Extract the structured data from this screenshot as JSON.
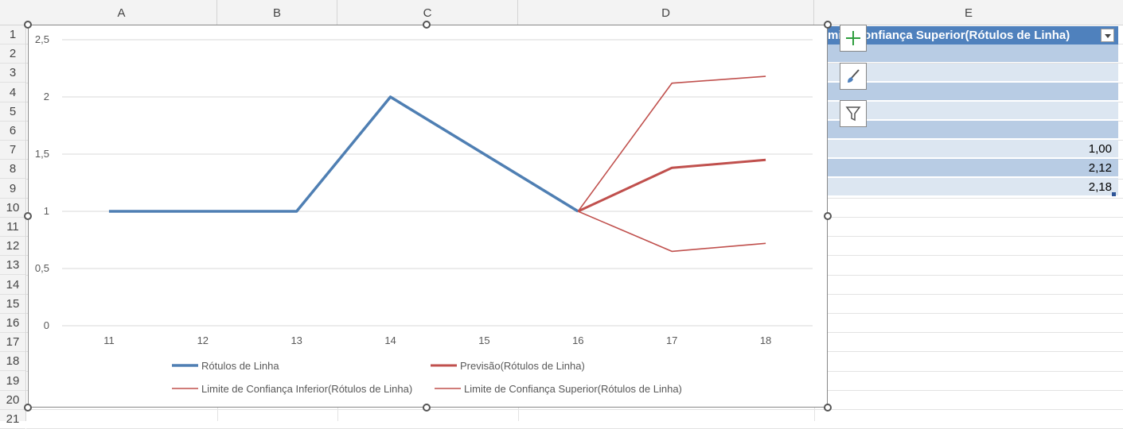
{
  "columns": [
    {
      "label": "A"
    },
    {
      "label": "B"
    },
    {
      "label": "C"
    },
    {
      "label": "D"
    },
    {
      "label": "E"
    }
  ],
  "rows": [
    "1",
    "2",
    "3",
    "4",
    "5",
    "6",
    "7",
    "8",
    "9",
    "10",
    "11",
    "12",
    "13",
    "14",
    "15",
    "16",
    "17",
    "18",
    "19",
    "20",
    "21"
  ],
  "table": {
    "header": "mi e Confiança Superior(Rótulos de Linha)",
    "values": [
      "",
      "",
      "",
      "",
      "",
      "1,00",
      "2,12",
      "2,18"
    ]
  },
  "chart_toolbar": [
    {
      "name": "chart-elements-button",
      "icon": "plus-icon"
    },
    {
      "name": "chart-styles-button",
      "icon": "brush-icon"
    },
    {
      "name": "chart-filters-button",
      "icon": "funnel-icon"
    }
  ],
  "colors": {
    "series_actual": "#4f7fb3",
    "series_forecast": "#c0504d",
    "table_header": "#4f81bd",
    "table_dark": "#b8cce4",
    "table_light": "#dce6f1"
  },
  "chart_data": {
    "type": "line",
    "x": [
      11,
      12,
      13,
      14,
      15,
      16,
      17,
      18
    ],
    "ylim": [
      0,
      2.5
    ],
    "yticks": [
      "0",
      "0,5",
      "1",
      "1,5",
      "2",
      "2,5"
    ],
    "xticks": [
      "11",
      "12",
      "13",
      "14",
      "15",
      "16",
      "17",
      "18"
    ],
    "grid": true,
    "legend_position": "bottom",
    "series": [
      {
        "name": "Rótulos de Linha",
        "values": [
          1,
          1,
          1,
          2,
          1.5,
          1,
          null,
          null
        ],
        "color": "#4f7fb3"
      },
      {
        "name": "Previsão(Rótulos de Linha)",
        "values": [
          null,
          null,
          null,
          null,
          null,
          1,
          1.38,
          1.45
        ],
        "color": "#c0504d"
      },
      {
        "name": "Limite de Confiança Inferior(Rótulos de Linha)",
        "values": [
          null,
          null,
          null,
          null,
          null,
          1,
          0.65,
          0.72
        ],
        "color": "#c0504d"
      },
      {
        "name": "Limite de Confiança Superior(Rótulos de Linha)",
        "values": [
          null,
          null,
          null,
          null,
          null,
          1,
          2.12,
          2.18
        ],
        "color": "#c0504d"
      }
    ]
  }
}
